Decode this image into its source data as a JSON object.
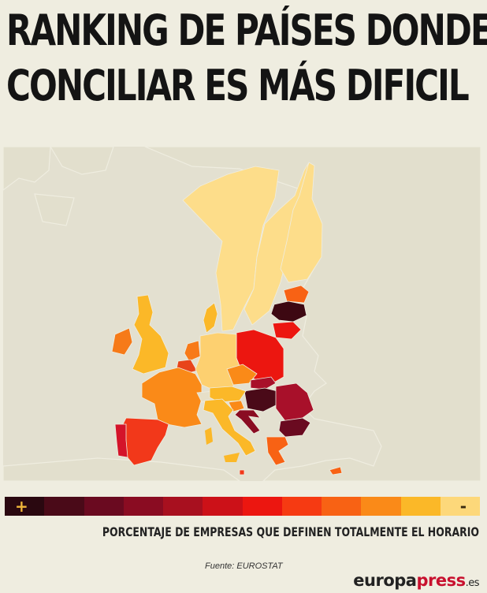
{
  "title": {
    "line1": "RANKING DE PAÍSES DONDE",
    "line2": "CONCILIAR ES MÁS DIFICIL"
  },
  "legend": {
    "plus": "+",
    "minus": "-",
    "colors": [
      "#2a0810",
      "#4a0a18",
      "#6a0a20",
      "#8a0c22",
      "#a8101f",
      "#cc1118",
      "#ec1610",
      "#f63a12",
      "#f86214",
      "#fa8a18",
      "#fbb828",
      "#fdd87a"
    ],
    "caption": "PORCENTAJE DE EMPRESAS QUE DEFINEN TOTALMENTE EL HORARIO"
  },
  "source": "Fuente: EUROSTAT",
  "brand": {
    "part1": "europa",
    "part2": "press",
    "part3": ".es"
  },
  "regions": [
    {
      "id": "norway",
      "color": "#fddd8a"
    },
    {
      "id": "sweden",
      "color": "#fddd8a"
    },
    {
      "id": "finland",
      "color": "#fddd8a"
    },
    {
      "id": "estonia",
      "color": "#f86214"
    },
    {
      "id": "latvia",
      "color": "#3d0812"
    },
    {
      "id": "lithuania",
      "color": "#ec1610"
    },
    {
      "id": "poland",
      "color": "#ec1610"
    },
    {
      "id": "ireland",
      "color": "#f67a18"
    },
    {
      "id": "uk",
      "color": "#fbb828"
    },
    {
      "id": "denmark",
      "color": "#fbb828"
    },
    {
      "id": "netherlands",
      "color": "#f87a18"
    },
    {
      "id": "belgium",
      "color": "#e8441a"
    },
    {
      "id": "germany",
      "color": "#fdd070"
    },
    {
      "id": "czechia",
      "color": "#fa8a18"
    },
    {
      "id": "slovakia",
      "color": "#a8102a"
    },
    {
      "id": "hungary",
      "color": "#4a0a18"
    },
    {
      "id": "romania",
      "color": "#a8102a"
    },
    {
      "id": "bulgaria",
      "color": "#6a0a20"
    },
    {
      "id": "france",
      "color": "#fa8a18"
    },
    {
      "id": "switzerland",
      "color": "#e6dfc8"
    },
    {
      "id": "austria",
      "color": "#fbb828"
    },
    {
      "id": "slovenia",
      "color": "#fa8a18"
    },
    {
      "id": "croatia",
      "color": "#8a0c22"
    },
    {
      "id": "italy",
      "color": "#fbb828"
    },
    {
      "id": "spain",
      "color": "#f2381a"
    },
    {
      "id": "portugal",
      "color": "#d4142a"
    },
    {
      "id": "greece",
      "color": "#f86214"
    },
    {
      "id": "cyprus",
      "color": "#f86214"
    },
    {
      "id": "malta",
      "color": "#f2381a"
    }
  ]
}
